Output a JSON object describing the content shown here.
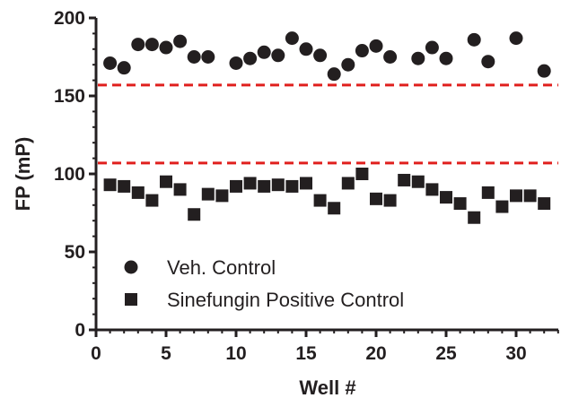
{
  "chart_data": {
    "type": "scatter",
    "title": "",
    "xlabel": "Well #",
    "ylabel": "FP (mP)",
    "xlim": [
      0,
      33
    ],
    "ylim": [
      0,
      200
    ],
    "x_ticks": [
      0,
      5,
      10,
      15,
      20,
      25,
      30
    ],
    "y_ticks": [
      0,
      50,
      100,
      150,
      200
    ],
    "x_tick_labels": [
      "0",
      "5",
      "10",
      "15",
      "20",
      "25",
      "30"
    ],
    "y_tick_labels": [
      "0",
      "50",
      "100",
      "150",
      "200"
    ],
    "grid": false,
    "legend_position": "bottom-left",
    "series": [
      {
        "name": "Veh. Control",
        "marker": "circle",
        "color": "#231f20",
        "x": [
          1,
          2,
          3,
          4,
          5,
          6,
          7,
          8,
          10,
          11,
          12,
          13,
          14,
          15,
          16,
          17,
          18,
          19,
          20,
          21,
          23,
          24,
          25,
          27,
          28,
          30,
          32
        ],
        "y": [
          171,
          168,
          183,
          183,
          181,
          185,
          175,
          175,
          171,
          174,
          178,
          176,
          187,
          180,
          176,
          164,
          170,
          179,
          182,
          175,
          174,
          181,
          174,
          186,
          172,
          187,
          166
        ]
      },
      {
        "name": "Sinefungin Positive Control",
        "marker": "square",
        "color": "#231f20",
        "x": [
          1,
          2,
          3,
          4,
          5,
          6,
          7,
          8,
          9,
          10,
          11,
          12,
          13,
          14,
          15,
          16,
          17,
          18,
          19,
          20,
          21,
          22,
          23,
          24,
          25,
          26,
          27,
          28,
          29,
          30,
          31,
          32
        ],
        "y": [
          93,
          92,
          88,
          83,
          95,
          90,
          74,
          87,
          86,
          92,
          94,
          92,
          93,
          92,
          94,
          83,
          78,
          94,
          100,
          84,
          83,
          96,
          95,
          90,
          85,
          81,
          72,
          88,
          79,
          86,
          86,
          81
        ]
      }
    ],
    "reference_lines": [
      {
        "y": 157,
        "color": "#e0201e",
        "style": "dashed"
      },
      {
        "y": 107,
        "color": "#e0201e",
        "style": "dashed"
      }
    ]
  }
}
